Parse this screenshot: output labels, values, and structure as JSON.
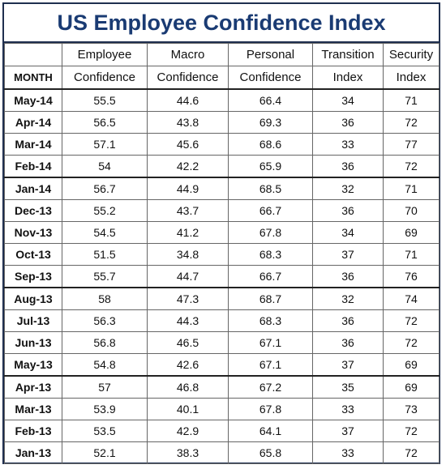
{
  "chart_data": {
    "type": "table",
    "title": "US Employee Confidence Index",
    "header_top": [
      "",
      "Employee",
      "Macro",
      "Personal",
      "Transition",
      "Security"
    ],
    "header_bottom": [
      "MONTH",
      "Confidence",
      "Confidence",
      "Confidence",
      "Index",
      "Index"
    ],
    "rows": [
      [
        "May-14",
        "55.5",
        "44.6",
        "66.4",
        "34",
        "71"
      ],
      [
        "Apr-14",
        "56.5",
        "43.8",
        "69.3",
        "36",
        "72"
      ],
      [
        "Mar-14",
        "57.1",
        "45.6",
        "68.6",
        "33",
        "77"
      ],
      [
        "Feb-14",
        "54",
        "42.2",
        "65.9",
        "36",
        "72"
      ],
      [
        "Jan-14",
        "56.7",
        "44.9",
        "68.5",
        "32",
        "71"
      ],
      [
        "Dec-13",
        "55.2",
        "43.7",
        "66.7",
        "36",
        "70"
      ],
      [
        "Nov-13",
        "54.5",
        "41.2",
        "67.8",
        "34",
        "69"
      ],
      [
        "Oct-13",
        "51.5",
        "34.8",
        "68.3",
        "37",
        "71"
      ],
      [
        "Sep-13",
        "55.7",
        "44.7",
        "66.7",
        "36",
        "76"
      ],
      [
        "Aug-13",
        "58",
        "47.3",
        "68.7",
        "32",
        "74"
      ],
      [
        "Jul-13",
        "56.3",
        "44.3",
        "68.3",
        "36",
        "72"
      ],
      [
        "Jun-13",
        "56.8",
        "46.5",
        "67.1",
        "36",
        "72"
      ],
      [
        "May-13",
        "54.8",
        "42.6",
        "67.1",
        "37",
        "69"
      ],
      [
        "Apr-13",
        "57",
        "46.8",
        "67.2",
        "35",
        "69"
      ],
      [
        "Mar-13",
        "53.9",
        "40.1",
        "67.8",
        "33",
        "73"
      ],
      [
        "Feb-13",
        "53.5",
        "42.9",
        "64.1",
        "37",
        "72"
      ],
      [
        "Jan-13",
        "52.1",
        "38.3",
        "65.8",
        "33",
        "72"
      ]
    ]
  }
}
